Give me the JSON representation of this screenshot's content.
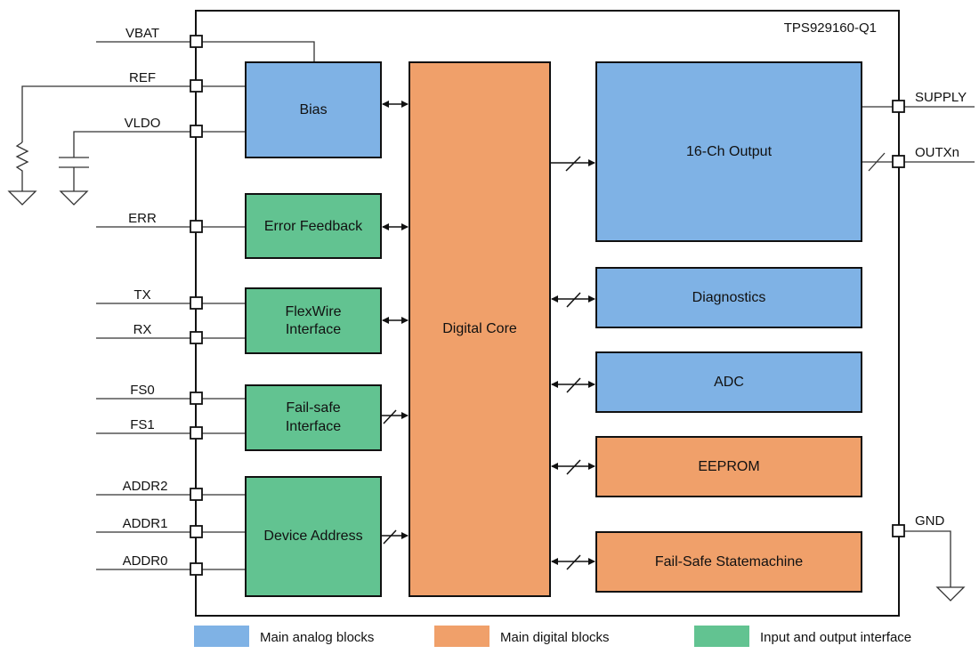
{
  "chip_name": "TPS929160-Q1",
  "colors": {
    "analog": "#7fb2e5",
    "digital": "#f0a06a",
    "interface": "#62c391"
  },
  "blocks": {
    "bias": "Bias",
    "error_feedback": "Error Feedback",
    "flexwire": [
      "FlexWire",
      "Interface"
    ],
    "failsafe_interface": [
      "Fail-safe",
      "Interface"
    ],
    "device_address": "Device Address",
    "digital_core": "Digital Core",
    "output": "16-Ch Output",
    "diagnostics": "Diagnostics",
    "adc": "ADC",
    "eeprom": "EEPROM",
    "failsafe_statemachine": "Fail-Safe Statemachine"
  },
  "pins_left": [
    "VBAT",
    "REF",
    "VLDO",
    "ERR",
    "TX",
    "RX",
    "FS0",
    "FS1",
    "ADDR2",
    "ADDR1",
    "ADDR0"
  ],
  "pins_right": [
    "SUPPLY",
    "OUTXn",
    "GND"
  ],
  "legend": [
    {
      "label": "Main analog blocks",
      "color": "#7fb2e5"
    },
    {
      "label": "Main digital blocks",
      "color": "#f0a06a"
    },
    {
      "label": "Input and output interface",
      "color": "#62c391"
    }
  ]
}
